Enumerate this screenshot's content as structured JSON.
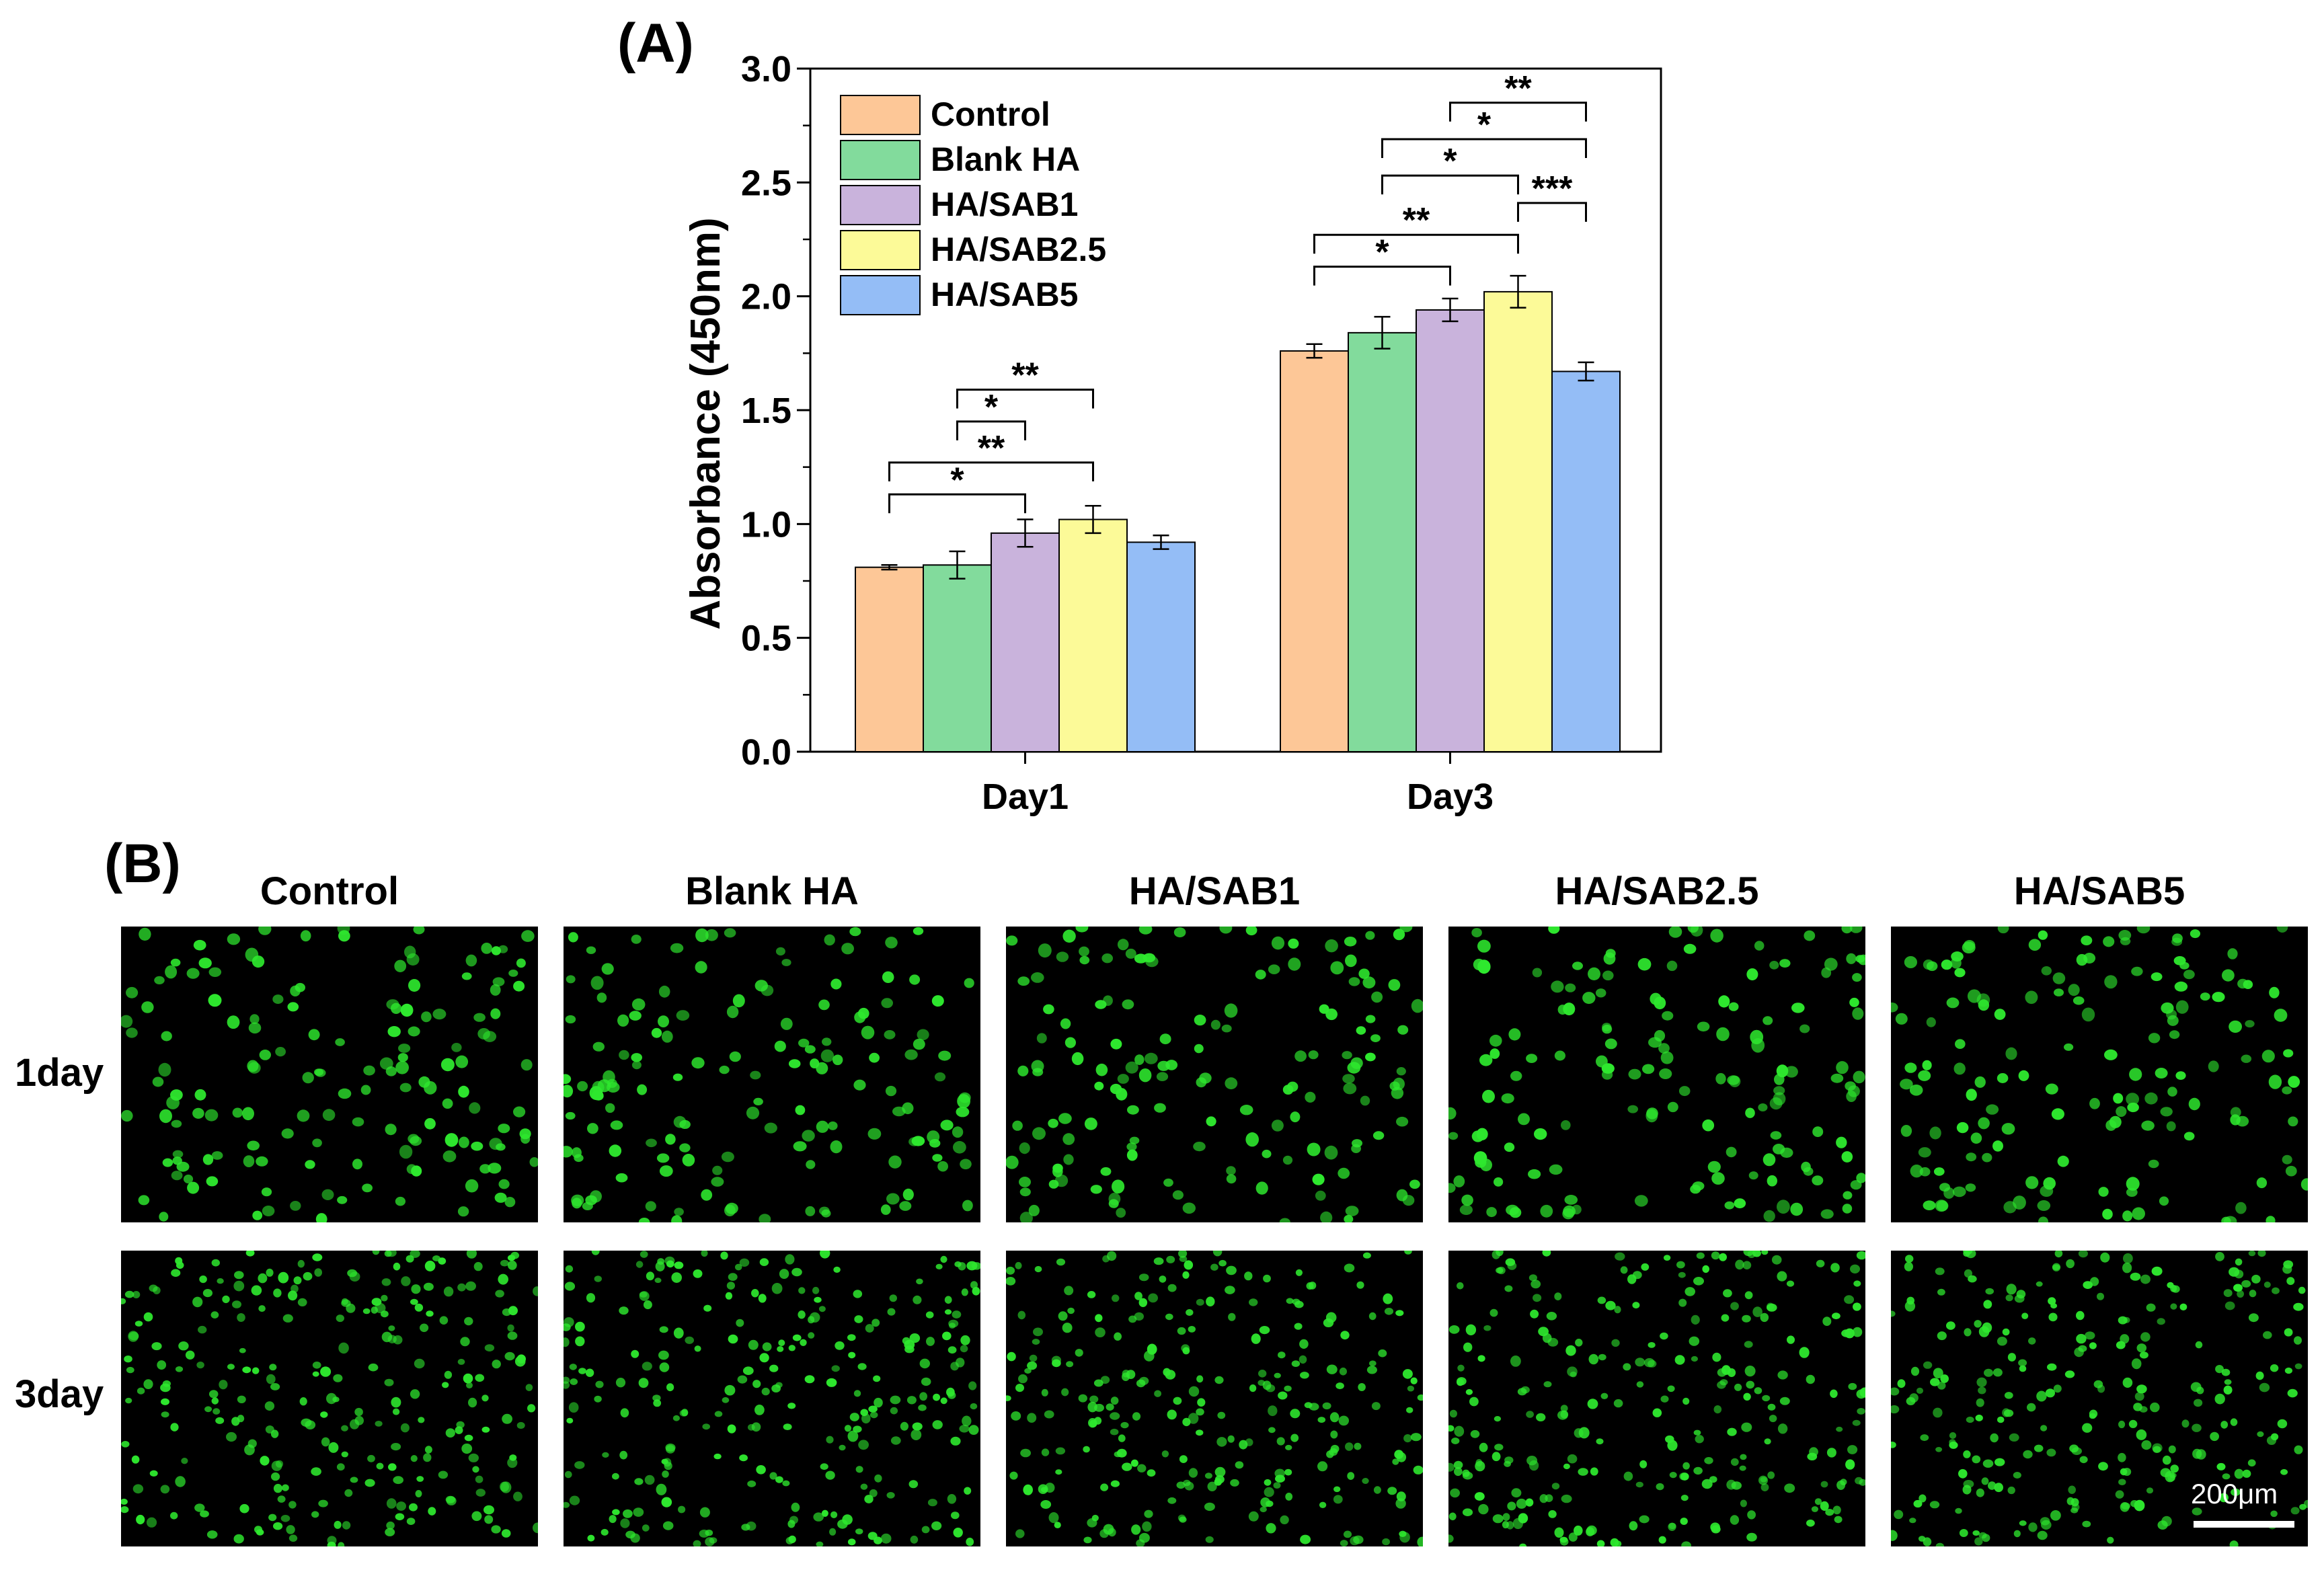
{
  "panels": {
    "a_label": "(A)",
    "b_label": "(B)"
  },
  "chart_data": {
    "type": "bar",
    "title": "",
    "xlabel": "",
    "ylabel": "Absorbance (450nm)",
    "ylim": [
      0,
      3.0
    ],
    "yticks": [
      0.0,
      0.5,
      1.0,
      1.5,
      2.0,
      2.5,
      3.0
    ],
    "ytick_labels": [
      "0.0",
      "0.5",
      "1.0",
      "1.5",
      "2.0",
      "2.5",
      "3.0"
    ],
    "categories": [
      "Day1",
      "Day3"
    ],
    "legend_position": "top-left",
    "series": [
      {
        "name": "Control",
        "color": "#FDC797",
        "values": [
          0.81,
          1.76
        ],
        "errors": [
          0.01,
          0.03
        ]
      },
      {
        "name": "Blank HA",
        "color": "#82DB9C",
        "values": [
          0.82,
          1.84
        ],
        "errors": [
          0.06,
          0.07
        ]
      },
      {
        "name": "HA/SAB1",
        "color": "#C9B3DC",
        "values": [
          0.96,
          1.94
        ],
        "errors": [
          0.06,
          0.05
        ]
      },
      {
        "name": "HA/SAB2.5",
        "color": "#FCFA98",
        "values": [
          1.02,
          2.02
        ],
        "errors": [
          0.06,
          0.07
        ]
      },
      {
        "name": "HA/SAB5",
        "color": "#94BDF6",
        "values": [
          0.92,
          1.67
        ],
        "errors": [
          0.03,
          0.04
        ]
      }
    ],
    "significance": [
      {
        "category": 0,
        "from": 0,
        "to": 2,
        "y": 1.13,
        "label": "*"
      },
      {
        "category": 0,
        "from": 0,
        "to": 3,
        "y": 1.27,
        "label": "**"
      },
      {
        "category": 0,
        "from": 1,
        "to": 2,
        "y": 1.45,
        "label": "*"
      },
      {
        "category": 0,
        "from": 1,
        "to": 3,
        "y": 1.59,
        "label": "**"
      },
      {
        "category": 1,
        "from": 0,
        "to": 2,
        "y": 2.13,
        "label": "*"
      },
      {
        "category": 1,
        "from": 0,
        "to": 3,
        "y": 2.27,
        "label": "**"
      },
      {
        "category": 1,
        "from": 3,
        "to": 4,
        "y": 2.41,
        "label": "***"
      },
      {
        "category": 1,
        "from": 1,
        "to": 3,
        "y": 2.53,
        "label": "*"
      },
      {
        "category": 1,
        "from": 1,
        "to": 4,
        "y": 2.69,
        "label": "*"
      },
      {
        "category": 1,
        "from": 2,
        "to": 4,
        "y": 2.85,
        "label": "**"
      }
    ]
  },
  "microscopy": {
    "columns": [
      "Control",
      "Blank HA",
      "HA/SAB1",
      "HA/SAB2.5",
      "HA/SAB5"
    ],
    "rows": [
      "1day",
      "3day"
    ],
    "cell_color": "#2EE82E",
    "scale_bar_label": "200μm"
  }
}
